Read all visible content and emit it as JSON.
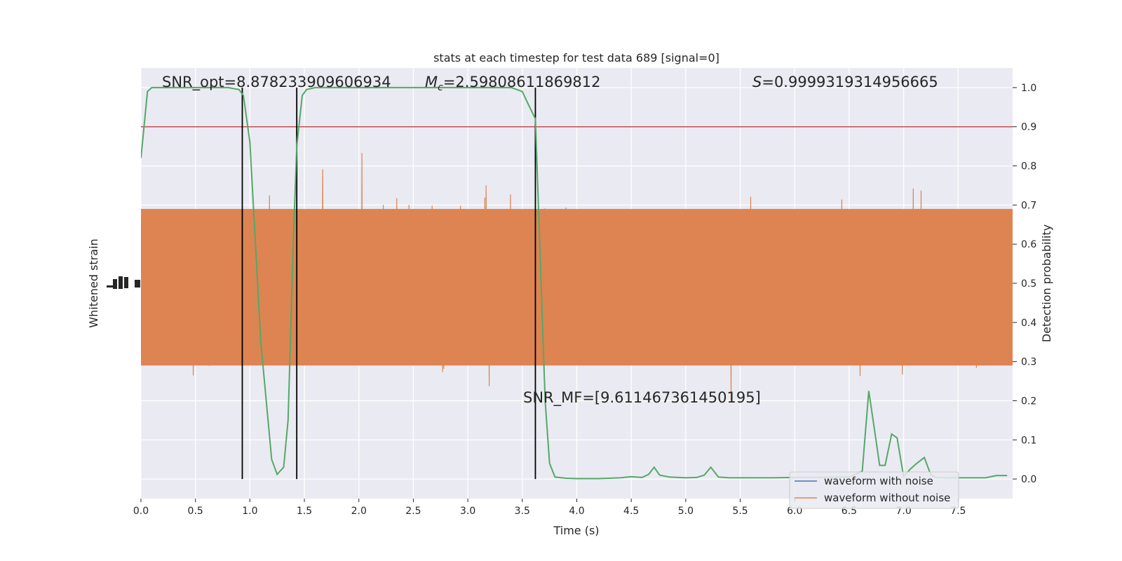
{
  "chart_data": {
    "type": "line",
    "title": "stats at each timestep for test data 689 [signal=0]",
    "xlabel": "Time (s)",
    "ylabel_left": "Whitened strain",
    "ylabel_right": "Detection probability",
    "xlim": [
      0,
      8.0
    ],
    "ylim_right": [
      -0.05,
      1.05
    ],
    "x_ticks": [
      "0.0",
      "0.5",
      "1.0",
      "1.5",
      "2.0",
      "2.5",
      "3.0",
      "3.5",
      "4.0",
      "4.5",
      "5.0",
      "5.5",
      "6.0",
      "6.5",
      "7.0",
      "7.5"
    ],
    "y_ticks_right": [
      "0.0",
      "0.1",
      "0.2",
      "0.3",
      "0.4",
      "0.5",
      "0.6",
      "0.7",
      "0.8",
      "0.9",
      "1.0"
    ],
    "grid": true,
    "legend_position": "lower-right",
    "threshold": 0.9,
    "vertical_lines_x": [
      0.93,
      1.43,
      3.62
    ],
    "annotations": {
      "snr_opt": "SNR_opt=8.878233909606934",
      "mc_symbol": "M",
      "mc_subscript": "c",
      "mc_value": "=2.59808611869812",
      "s_symbol": "S",
      "s_value": "=0.9999319314956665",
      "snr_mf": "SNR_MF=[9.611467361450195]"
    },
    "series": [
      {
        "name": "waveform with noise",
        "color": "#4c72b0",
        "kind": "strain",
        "x_range": [
          0,
          8.0
        ]
      },
      {
        "name": "waveform without noise",
        "color": "#dd8452",
        "kind": "strain",
        "x_range": [
          0,
          8.0
        ]
      },
      {
        "name": "",
        "color": "#55a868",
        "kind": "probability",
        "x": [
          0.0,
          0.06,
          0.1,
          0.2,
          0.3,
          0.4,
          0.5,
          0.6,
          0.7,
          0.8,
          0.9,
          0.94,
          1.0,
          1.1,
          1.2,
          1.25,
          1.31,
          1.35,
          1.4,
          1.43,
          1.48,
          1.52,
          1.6,
          1.8,
          2.0,
          2.2,
          2.4,
          2.6,
          2.8,
          3.0,
          3.2,
          3.4,
          3.5,
          3.55,
          3.62,
          3.66,
          3.71,
          3.75,
          3.8,
          3.9,
          4.0,
          4.2,
          4.4,
          4.5,
          4.6,
          4.66,
          4.71,
          4.76,
          4.85,
          5.0,
          5.1,
          5.17,
          5.23,
          5.3,
          5.4,
          5.6,
          5.8,
          6.0,
          6.2,
          6.5,
          6.62,
          6.68,
          6.73,
          6.78,
          6.83,
          6.89,
          6.94,
          7.0,
          7.06,
          7.12,
          7.19,
          7.25,
          7.3,
          7.4,
          7.6,
          7.75,
          7.85,
          7.95
        ],
        "y": [
          0.82,
          0.99,
          1.0,
          1.0,
          1.0,
          1.0,
          1.0,
          1.0,
          1.0,
          1.0,
          0.995,
          0.98,
          0.86,
          0.35,
          0.05,
          0.012,
          0.03,
          0.15,
          0.62,
          0.85,
          0.98,
          0.995,
          1.0,
          1.0,
          1.0,
          1.0,
          1.0,
          1.0,
          1.0,
          1.0,
          1.0,
          1.0,
          0.99,
          0.96,
          0.92,
          0.6,
          0.2,
          0.04,
          0.005,
          0.002,
          0.001,
          0.001,
          0.003,
          0.006,
          0.004,
          0.012,
          0.03,
          0.01,
          0.005,
          0.003,
          0.004,
          0.01,
          0.03,
          0.005,
          0.003,
          0.003,
          0.003,
          0.004,
          0.004,
          0.005,
          0.02,
          0.225,
          0.13,
          0.035,
          0.035,
          0.115,
          0.105,
          0.006,
          0.025,
          0.04,
          0.055,
          0.01,
          0.004,
          0.003,
          0.003,
          0.003,
          0.009,
          0.009
        ]
      }
    ]
  }
}
